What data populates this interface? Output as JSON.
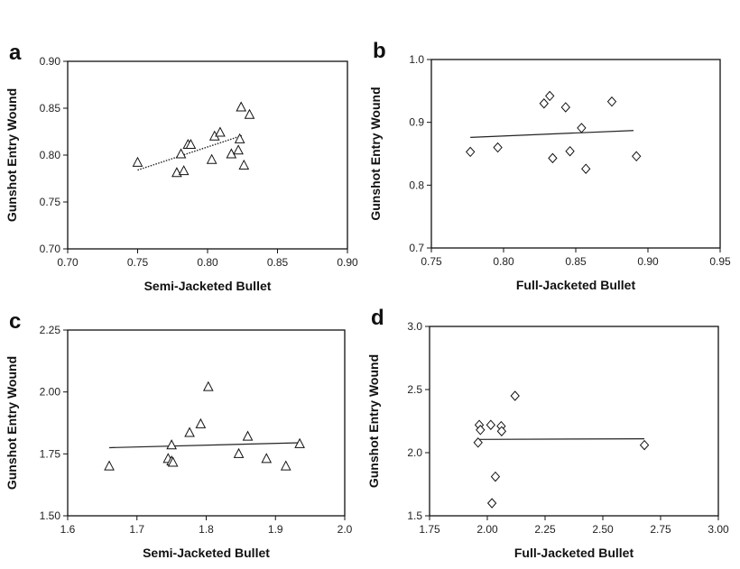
{
  "chart_data": [
    {
      "panel": "a",
      "type": "scatter",
      "marker": "triangle",
      "xlabel": "Semi-Jacketed Bullet",
      "ylabel": "Gunshot Entry Wound",
      "xlim": [
        0.7,
        0.9
      ],
      "ylim": [
        0.7,
        0.9
      ],
      "xticks": [
        "0.70",
        "0.75",
        "0.80",
        "0.85",
        "0.90"
      ],
      "yticks": [
        "0.70",
        "0.75",
        "0.80",
        "0.85",
        "0.90"
      ],
      "grid": false,
      "points": [
        {
          "x": 0.75,
          "y": 0.792
        },
        {
          "x": 0.778,
          "y": 0.781
        },
        {
          "x": 0.781,
          "y": 0.801
        },
        {
          "x": 0.783,
          "y": 0.783
        },
        {
          "x": 0.786,
          "y": 0.811
        },
        {
          "x": 0.788,
          "y": 0.811
        },
        {
          "x": 0.803,
          "y": 0.795
        },
        {
          "x": 0.805,
          "y": 0.82
        },
        {
          "x": 0.809,
          "y": 0.824
        },
        {
          "x": 0.817,
          "y": 0.801
        },
        {
          "x": 0.822,
          "y": 0.805
        },
        {
          "x": 0.823,
          "y": 0.817
        },
        {
          "x": 0.824,
          "y": 0.851
        },
        {
          "x": 0.826,
          "y": 0.789
        },
        {
          "x": 0.83,
          "y": 0.843
        }
      ],
      "trendline": {
        "x": [
          0.75,
          0.825
        ],
        "y": [
          0.784,
          0.821
        ],
        "style": "dotted"
      }
    },
    {
      "panel": "b",
      "type": "scatter",
      "marker": "diamond",
      "xlabel": "Full-Jacketed Bullet",
      "ylabel": "Gunshot Entry Wound",
      "xlim": [
        0.75,
        0.95
      ],
      "ylim": [
        0.7,
        1.0
      ],
      "xticks": [
        "0.75",
        "0.80",
        "0.85",
        "0.90",
        "0.95"
      ],
      "yticks": [
        "0.7",
        "0.8",
        "0.9",
        "1.0"
      ],
      "grid": false,
      "points": [
        {
          "x": 0.777,
          "y": 0.853
        },
        {
          "x": 0.796,
          "y": 0.86
        },
        {
          "x": 0.828,
          "y": 0.93
        },
        {
          "x": 0.832,
          "y": 0.942
        },
        {
          "x": 0.834,
          "y": 0.843
        },
        {
          "x": 0.843,
          "y": 0.924
        },
        {
          "x": 0.846,
          "y": 0.854
        },
        {
          "x": 0.854,
          "y": 0.891
        },
        {
          "x": 0.857,
          "y": 0.826
        },
        {
          "x": 0.875,
          "y": 0.933
        },
        {
          "x": 0.892,
          "y": 0.846
        }
      ],
      "trendline": {
        "x": [
          0.777,
          0.89
        ],
        "y": [
          0.876,
          0.887
        ],
        "style": "solid"
      }
    },
    {
      "panel": "c",
      "type": "scatter",
      "marker": "triangle",
      "xlabel": "Semi-Jacketed Bullet",
      "ylabel": "Gunshot Entry Wound",
      "xlim": [
        1.6,
        2.0
      ],
      "ylim": [
        1.5,
        2.25
      ],
      "xticks": [
        "1.6",
        "1.7",
        "1.8",
        "1.9",
        "2.0"
      ],
      "yticks": [
        "1.50",
        "1.75",
        "2.00",
        "2.25"
      ],
      "grid": false,
      "points": [
        {
          "x": 1.66,
          "y": 1.7
        },
        {
          "x": 1.745,
          "y": 1.73
        },
        {
          "x": 1.75,
          "y": 1.72
        },
        {
          "x": 1.752,
          "y": 1.715
        },
        {
          "x": 1.75,
          "y": 1.785
        },
        {
          "x": 1.776,
          "y": 1.835
        },
        {
          "x": 1.792,
          "y": 1.87
        },
        {
          "x": 1.803,
          "y": 2.02
        },
        {
          "x": 1.847,
          "y": 1.75
        },
        {
          "x": 1.86,
          "y": 1.82
        },
        {
          "x": 1.887,
          "y": 1.73
        },
        {
          "x": 1.915,
          "y": 1.7
        },
        {
          "x": 1.935,
          "y": 1.79
        }
      ],
      "trendline": {
        "x": [
          1.66,
          1.935
        ],
        "y": [
          1.775,
          1.795
        ],
        "style": "solid"
      }
    },
    {
      "panel": "d",
      "type": "scatter",
      "marker": "diamond",
      "xlabel": "Full-Jacketed Bullet",
      "ylabel": "Gunshot Entry Wound",
      "xlim": [
        1.75,
        3.0
      ],
      "ylim": [
        1.5,
        3.0
      ],
      "xticks": [
        "1.75",
        "2.00",
        "2.25",
        "2.50",
        "2.75",
        "3.00"
      ],
      "yticks": [
        "1.5",
        "2.0",
        "2.5",
        "3.0"
      ],
      "grid": false,
      "points": [
        {
          "x": 1.96,
          "y": 2.08
        },
        {
          "x": 1.965,
          "y": 2.22
        },
        {
          "x": 1.97,
          "y": 2.18
        },
        {
          "x": 2.015,
          "y": 2.22
        },
        {
          "x": 2.02,
          "y": 1.6
        },
        {
          "x": 2.035,
          "y": 1.81
        },
        {
          "x": 2.06,
          "y": 2.21
        },
        {
          "x": 2.062,
          "y": 2.17
        },
        {
          "x": 2.12,
          "y": 2.45
        },
        {
          "x": 2.68,
          "y": 2.06
        }
      ],
      "trendline": {
        "x": [
          1.96,
          2.68
        ],
        "y": [
          2.105,
          2.11
        ],
        "style": "solid"
      }
    }
  ]
}
